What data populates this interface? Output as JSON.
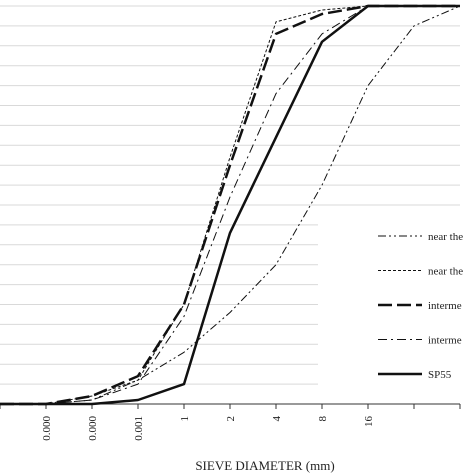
{
  "chart_data": {
    "type": "line",
    "title": "",
    "xlabel": "SIEVE DIAMETER (mm)",
    "ylabel": "",
    "x_tick_labels": [
      "0.000",
      "0.000",
      "0.001",
      "1",
      "2",
      "4",
      "8",
      "16"
    ],
    "ylim": [
      0,
      100
    ],
    "grid": true,
    "legend_position": "right",
    "series": [
      {
        "name": "near the",
        "style": "dash-dot-dot",
        "stroke_width": 1,
        "values": [
          0,
          0,
          1,
          6,
          13,
          23,
          35,
          55,
          80,
          95,
          100
        ]
      },
      {
        "name": "near the",
        "style": "dotted",
        "stroke_width": 1,
        "values": [
          0,
          0,
          2,
          6,
          25,
          62,
          96,
          99,
          100,
          100,
          100
        ]
      },
      {
        "name": "interme",
        "style": "long-dash",
        "stroke_width": 2.5,
        "values": [
          0,
          0,
          2,
          7,
          25,
          60,
          93,
          98,
          100,
          100,
          100
        ]
      },
      {
        "name": "interme",
        "style": "dash-dot",
        "stroke_width": 1,
        "values": [
          0,
          0,
          1,
          5,
          22,
          52,
          78,
          93,
          100,
          100,
          100
        ]
      },
      {
        "name": "SP55",
        "style": "solid",
        "stroke_width": 2.5,
        "values": [
          0,
          0,
          0,
          1,
          5,
          43,
          67,
          91,
          100,
          100,
          100
        ]
      }
    ]
  }
}
